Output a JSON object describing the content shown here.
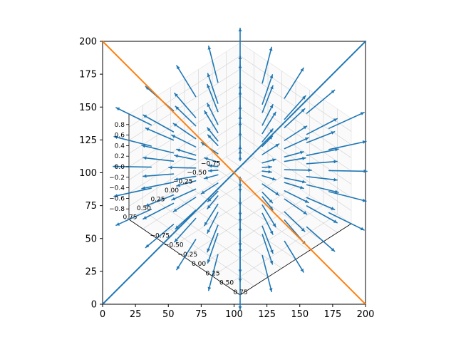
{
  "chart_data": [
    {
      "type": "line",
      "title": "",
      "xlabel": "",
      "ylabel": "",
      "xlim": [
        0,
        200
      ],
      "ylim": [
        0,
        200
      ],
      "x_ticks": [
        "0",
        "25",
        "50",
        "75",
        "100",
        "125",
        "150",
        "175",
        "200"
      ],
      "y_ticks": [
        "0",
        "25",
        "50",
        "75",
        "100",
        "125",
        "150",
        "175",
        "200"
      ],
      "grid": false,
      "series": [
        {
          "color": "#1f77b4",
          "x": [
            0,
            200
          ],
          "y": [
            0,
            200
          ]
        },
        {
          "color": "#ff7f0e",
          "x": [
            0,
            200
          ],
          "y": [
            200,
            0
          ]
        }
      ]
    },
    {
      "type": "quiver3d",
      "title": "",
      "xlim": [
        -0.8,
        0.8
      ],
      "ylim": [
        -0.8,
        0.8
      ],
      "zlim": [
        -0.8,
        0.8
      ],
      "z_ticks": [
        "0.8",
        "0.6",
        "0.4",
        "0.2",
        "0.0",
        "−0.2",
        "−0.4",
        "−0.6",
        "−0.8"
      ],
      "x_ticks": [
        "−0.75",
        "−0.50",
        "−0.25",
        "0.00",
        "0.25",
        "0.50",
        "0.75"
      ],
      "y_ticks": [
        "0.75",
        "0.50",
        "0.25",
        "0.00",
        "−0.25",
        "−0.50",
        "−0.75"
      ],
      "grid": true,
      "arrow_color": "#1f77b4",
      "field": "radial, vectors point outward from origin"
    }
  ]
}
